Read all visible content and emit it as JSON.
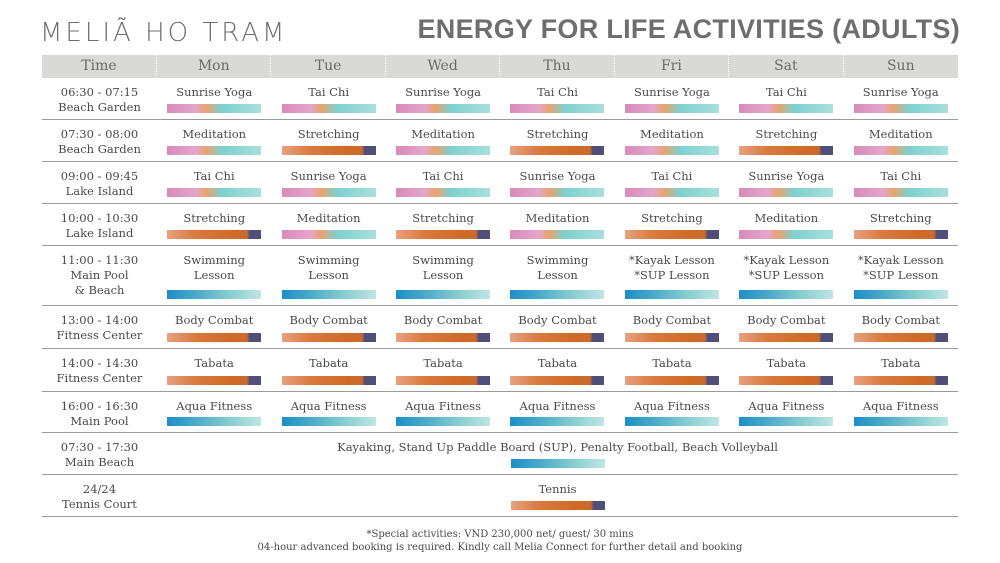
{
  "brand": "MELIÃ HO TRAM",
  "title": "ENERGY FOR LIFE ACTIVITIES (ADULTS)",
  "header": [
    "Time",
    "Mon",
    "Tue",
    "Wed",
    "Thu",
    "Fri",
    "Sat",
    "Sun"
  ],
  "rows": [
    {
      "time": [
        "06:30 - 07:15",
        "Beach Garden"
      ],
      "cells": [
        {
          "text": [
            "Sunrise Yoga"
          ],
          "bar": "pink"
        },
        {
          "text": [
            "Tai Chi"
          ],
          "bar": "pink"
        },
        {
          "text": [
            "Sunrise Yoga"
          ],
          "bar": "pink"
        },
        {
          "text": [
            "Tai Chi"
          ],
          "bar": "pink"
        },
        {
          "text": [
            "Sunrise Yoga"
          ],
          "bar": "pink"
        },
        {
          "text": [
            "Tai Chi"
          ],
          "bar": "pink"
        },
        {
          "text": [
            "Sunrise Yoga"
          ],
          "bar": "pink"
        }
      ]
    },
    {
      "time": [
        "07:30 - 08:00",
        "Beach Garden"
      ],
      "cells": [
        {
          "text": [
            "Meditation"
          ],
          "bar": "pink"
        },
        {
          "text": [
            "Stretching"
          ],
          "bar": "orange"
        },
        {
          "text": [
            "Meditation"
          ],
          "bar": "pink"
        },
        {
          "text": [
            "Stretching"
          ],
          "bar": "orange"
        },
        {
          "text": [
            "Meditation"
          ],
          "bar": "pink"
        },
        {
          "text": [
            "Stretching"
          ],
          "bar": "orange"
        },
        {
          "text": [
            "Meditation"
          ],
          "bar": "pink"
        }
      ]
    },
    {
      "time": [
        "09:00 - 09:45",
        "Lake Island"
      ],
      "cells": [
        {
          "text": [
            "Tai Chi"
          ],
          "bar": "pink"
        },
        {
          "text": [
            "Sunrise Yoga"
          ],
          "bar": "pink"
        },
        {
          "text": [
            "Tai Chi"
          ],
          "bar": "pink"
        },
        {
          "text": [
            "Sunrise Yoga"
          ],
          "bar": "pink"
        },
        {
          "text": [
            "Tai Chi"
          ],
          "bar": "pink"
        },
        {
          "text": [
            "Sunrise Yoga"
          ],
          "bar": "pink"
        },
        {
          "text": [
            "Tai Chi"
          ],
          "bar": "pink"
        }
      ]
    },
    {
      "time": [
        "10:00 - 10:30",
        "Lake Island"
      ],
      "cells": [
        {
          "text": [
            "Stretching"
          ],
          "bar": "orange"
        },
        {
          "text": [
            "Meditation"
          ],
          "bar": "pink"
        },
        {
          "text": [
            "Stretching"
          ],
          "bar": "orange"
        },
        {
          "text": [
            "Meditation"
          ],
          "bar": "pink"
        },
        {
          "text": [
            "Stretching"
          ],
          "bar": "orange"
        },
        {
          "text": [
            "Meditation"
          ],
          "bar": "pink"
        },
        {
          "text": [
            "Stretching"
          ],
          "bar": "orange"
        }
      ]
    },
    {
      "time": [
        "11:00 - 11:30",
        "Main Pool",
        "& Beach"
      ],
      "cells": [
        {
          "text": [
            "Swimming",
            "Lesson"
          ],
          "bar": "blue"
        },
        {
          "text": [
            "Swimming",
            "Lesson"
          ],
          "bar": "blue"
        },
        {
          "text": [
            "Swimming",
            "Lesson"
          ],
          "bar": "blue"
        },
        {
          "text": [
            "Swimming",
            "Lesson"
          ],
          "bar": "blue"
        },
        {
          "text": [
            "*Kayak Lesson",
            "*SUP Lesson"
          ],
          "bar": "blue"
        },
        {
          "text": [
            "*Kayak Lesson",
            "*SUP Lesson"
          ],
          "bar": "blue"
        },
        {
          "text": [
            "*Kayak Lesson",
            "*SUP Lesson"
          ],
          "bar": "blue"
        }
      ]
    },
    {
      "time": [
        "13:00 - 14:00",
        "Fitness Center"
      ],
      "cells": [
        {
          "text": [
            "Body Combat"
          ],
          "bar": "orange"
        },
        {
          "text": [
            "Body Combat"
          ],
          "bar": "orange"
        },
        {
          "text": [
            "Body Combat"
          ],
          "bar": "orange"
        },
        {
          "text": [
            "Body Combat"
          ],
          "bar": "orange"
        },
        {
          "text": [
            "Body Combat"
          ],
          "bar": "orange"
        },
        {
          "text": [
            "Body Combat"
          ],
          "bar": "orange"
        },
        {
          "text": [
            "Body Combat"
          ],
          "bar": "orange"
        }
      ]
    },
    {
      "time": [
        "14:00 - 14:30",
        "Fitness Center"
      ],
      "cells": [
        {
          "text": [
            "Tabata"
          ],
          "bar": "orange"
        },
        {
          "text": [
            "Tabata"
          ],
          "bar": "orange"
        },
        {
          "text": [
            "Tabata"
          ],
          "bar": "orange"
        },
        {
          "text": [
            "Tabata"
          ],
          "bar": "orange"
        },
        {
          "text": [
            "Tabata"
          ],
          "bar": "orange"
        },
        {
          "text": [
            "Tabata"
          ],
          "bar": "orange"
        },
        {
          "text": [
            "Tabata"
          ],
          "bar": "orange"
        }
      ]
    },
    {
      "time": [
        "16:00 - 16:30",
        "Main Pool"
      ],
      "cells": [
        {
          "text": [
            "Aqua Fitness"
          ],
          "bar": "blue"
        },
        {
          "text": [
            "Aqua Fitness"
          ],
          "bar": "blue"
        },
        {
          "text": [
            "Aqua Fitness"
          ],
          "bar": "blue"
        },
        {
          "text": [
            "Aqua Fitness"
          ],
          "bar": "blue"
        },
        {
          "text": [
            "Aqua Fitness"
          ],
          "bar": "blue"
        },
        {
          "text": [
            "Aqua Fitness"
          ],
          "bar": "blue"
        },
        {
          "text": [
            "Aqua Fitness"
          ],
          "bar": "blue"
        }
      ]
    },
    {
      "time": [
        "07:30 - 17:30",
        "Main Beach"
      ],
      "span": {
        "text": [
          "Kayaking, Stand Up Paddle Board (SUP), Penalty Football, Beach Volleyball"
        ],
        "bar": "blue"
      }
    },
    {
      "time": [
        "24/24",
        "Tennis Court"
      ],
      "span": {
        "text": [
          "Tennis"
        ],
        "bar": "orange"
      }
    }
  ],
  "footnotes": [
    "*Special activities: VND 230,000 net/ guest/ 30 mins",
    "04-hour advanced booking is required. Kindly call Melia Connect for further detail and booking"
  ]
}
